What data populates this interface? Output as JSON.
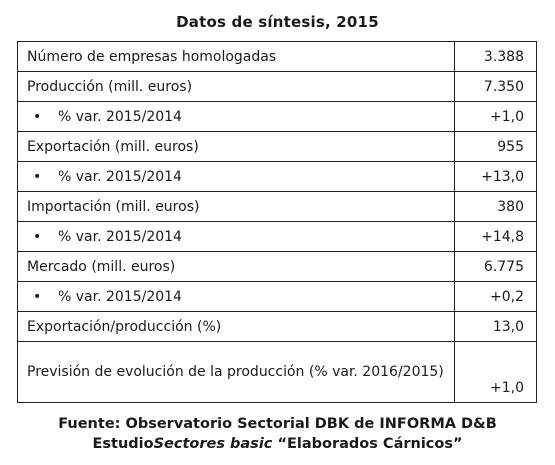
{
  "title": "Datos de síntesis, 2015",
  "bullet": "•",
  "rows": [
    {
      "label": "Número de empresas homologadas",
      "value": "3.388"
    },
    {
      "label": "Producción (mill. euros)",
      "value": "7.350"
    },
    {
      "label": "% var. 2015/2014",
      "value": "+1,0"
    },
    {
      "label": "Exportación (mill. euros)",
      "value": "955"
    },
    {
      "label": "% var. 2015/2014",
      "value": "+13,0"
    },
    {
      "label": "Importación (mill. euros)",
      "value": "380"
    },
    {
      "label": "% var. 2015/2014",
      "value": "+14,8"
    },
    {
      "label": "Mercado (mill. euros)",
      "value": "6.775"
    },
    {
      "label": "% var. 2015/2014",
      "value": "+0,2"
    },
    {
      "label": "Exportación/producción (%)",
      "value": "13,0"
    },
    {
      "label": "Previsión de evolución de la producción (% var. 2016/2015)",
      "value": "+1,0"
    }
  ],
  "source": {
    "line1": "Fuente: Observatorio Sectorial DBK de INFORMA D&B",
    "line2_prefix": "Estudio",
    "line2_italic": "Sectores basic",
    "line2_suffix": " “Elaborados Cárnicos”"
  }
}
